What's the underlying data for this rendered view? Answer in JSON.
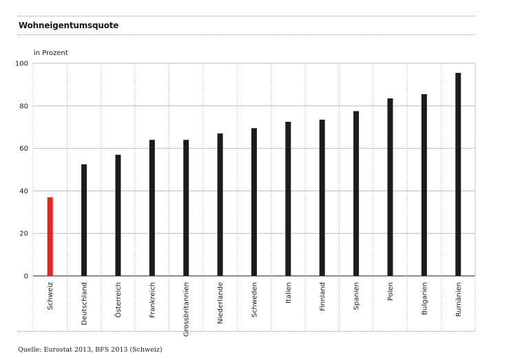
{
  "header": {
    "title": "Wohneigentumsquote"
  },
  "footer": {
    "source": "Quelle: Eurostat 2013, BFS 2013 (Schweiz)"
  },
  "colors": {
    "highlight": "#e2261c",
    "bar": "#1c1c1c",
    "grid": "#bdbdbd"
  },
  "chart_data": {
    "type": "bar",
    "title": "Wohneigentumsquote",
    "ylabel": "in Prozent",
    "xlabel": "",
    "ylim": [
      0,
      100
    ],
    "yticks": [
      0,
      20,
      40,
      60,
      80,
      100
    ],
    "grid": true,
    "highlight_category": "Schweiz",
    "categories": [
      "Schweiz",
      "Deutschland",
      "Österreich",
      "Frankreich",
      "Grossbritannien",
      "Niederlande",
      "Schweden",
      "Italien",
      "Finnland",
      "Spanien",
      "Polen",
      "Bulgarien",
      "Rumänien"
    ],
    "values": [
      37,
      52.5,
      57,
      64,
      64,
      67,
      69.5,
      72.5,
      73.5,
      77.5,
      83.5,
      85.5,
      95.5
    ]
  }
}
